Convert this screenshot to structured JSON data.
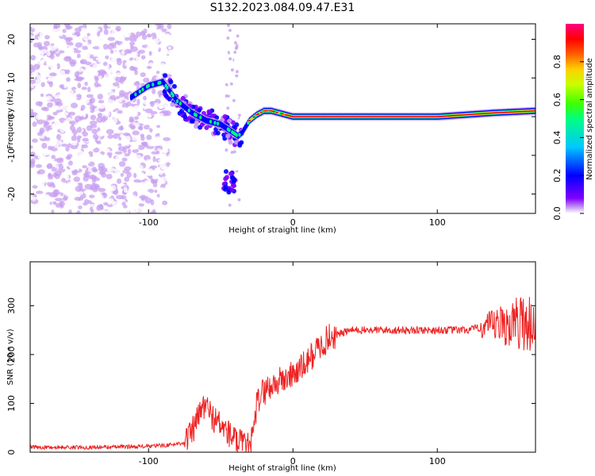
{
  "title": "S132.2023.084.09.47.E31",
  "chart_data": [
    {
      "type": "heatmap",
      "xlabel": "Height of straight line (km)",
      "ylabel": "Frequency (Hz)",
      "xlim": [
        -182,
        168
      ],
      "ylim": [
        -25,
        24
      ],
      "xticks": [
        -100,
        0,
        100
      ],
      "yticks": [
        -20,
        -10,
        0,
        10,
        20
      ],
      "colorbar": {
        "label": "Normalized spectral amplitude",
        "range": [
          0,
          1
        ],
        "ticks": [
          0.0,
          0.2,
          0.4,
          0.6,
          0.8
        ],
        "colors": [
          "#ffffff",
          "#c8a0f0",
          "#8000ff",
          "#0000ff",
          "#00c8ff",
          "#00ff80",
          "#40ff00",
          "#c8ff00",
          "#ffd000",
          "#ff6000",
          "#ff0000",
          "#ff0080"
        ]
      },
      "ridge": {
        "x": [
          -112,
          -100,
          -90,
          -80,
          -70,
          -60,
          -50,
          -42,
          -38,
          -35,
          -30,
          -25,
          -20,
          -15,
          -10,
          -5,
          0,
          20,
          60,
          100,
          120,
          140,
          168
        ],
        "y": [
          5,
          8,
          9,
          4,
          1,
          -1,
          -2,
          -4,
          -5,
          -4,
          -1,
          0.5,
          1.5,
          1.5,
          1,
          0.5,
          0,
          0,
          0,
          0,
          0.5,
          1,
          1.5
        ]
      },
      "grid": false
    },
    {
      "type": "line",
      "xlabel": "Height of straight line (km)",
      "ylabel": "SNR (10 * v/v)",
      "xlim": [
        -182,
        168
      ],
      "ylim": [
        0,
        390
      ],
      "xticks": [
        -100,
        0,
        100
      ],
      "yticks": [
        0,
        100,
        200,
        300
      ],
      "series": [
        {
          "color": "#ee2222",
          "x": [
            -182,
            -160,
            -140,
            -120,
            -100,
            -85,
            -75,
            -70,
            -65,
            -62,
            -58,
            -55,
            -50,
            -45,
            -40,
            -35,
            -30,
            -27,
            -25,
            -22,
            -18,
            -15,
            -10,
            -5,
            0,
            5,
            10,
            15,
            20,
            25,
            30,
            35,
            40,
            60,
            80,
            100,
            120,
            130,
            140,
            150,
            160,
            168
          ],
          "y": [
            10,
            10,
            10,
            11,
            12,
            15,
            20,
            40,
            75,
            95,
            85,
            70,
            55,
            40,
            25,
            15,
            10,
            40,
            100,
            120,
            130,
            135,
            145,
            150,
            160,
            170,
            185,
            205,
            220,
            235,
            240,
            245,
            250,
            250,
            250,
            250,
            250,
            255,
            258,
            262,
            268,
            260
          ]
        }
      ],
      "grid": false
    }
  ]
}
